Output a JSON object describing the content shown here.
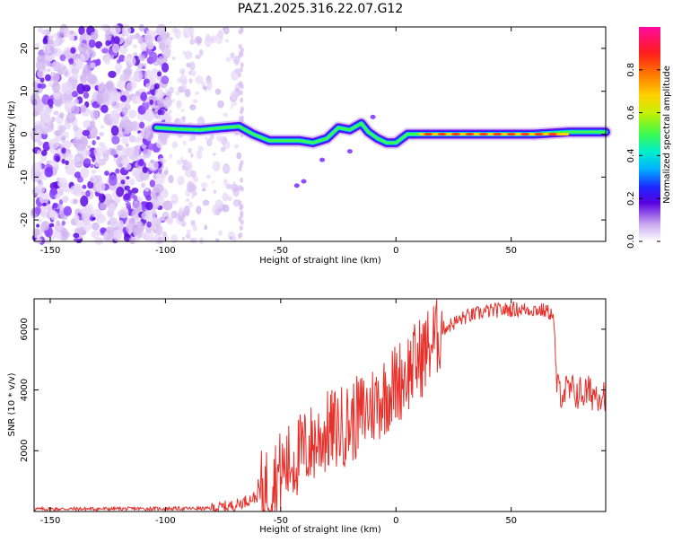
{
  "title": "PAZ1.2025.316.22.07.G12",
  "chart_data": [
    {
      "type": "heatmap",
      "name": "spectrogram",
      "xlabel": "Height of straight line (km)",
      "ylabel": "Frequency (Hz)",
      "xlim": [
        -157,
        91
      ],
      "ylim": [
        -25,
        25
      ],
      "xticks": [
        -150,
        -100,
        -50,
        0,
        50
      ],
      "yticks": [
        -20,
        -10,
        0,
        10,
        20
      ],
      "colorbar": {
        "label": "Normalized spectral amplitude",
        "range": [
          0,
          1
        ],
        "ticks": [
          "0.0",
          "0.2",
          "0.4",
          "0.6",
          "0.8"
        ],
        "tick_values": [
          0.0,
          0.2,
          0.4,
          0.6,
          0.8
        ]
      },
      "ridge": {
        "description_points_height_km": [
          -104,
          -95,
          -85,
          -75,
          -68,
          -62,
          -55,
          -48,
          -42,
          -36,
          -30,
          -25,
          -20,
          -15,
          -12,
          -8,
          -4,
          0,
          5,
          10,
          20,
          40,
          60,
          75,
          91
        ],
        "frequency_hz": [
          1.5,
          1.2,
          1.0,
          1.5,
          1.8,
          0.0,
          -1.5,
          -1.5,
          -1.5,
          -2.0,
          -1.0,
          1.5,
          1.0,
          2.5,
          0.5,
          -1.0,
          -2.0,
          -2.0,
          0.0,
          0.0,
          0.0,
          0.0,
          0.0,
          0.5,
          0.5
        ]
      }
    },
    {
      "type": "line",
      "name": "snr",
      "xlabel": "Height of straight line (km)",
      "ylabel": "SNR (10 * v/v)",
      "xlim": [
        -157,
        91
      ],
      "ylim": [
        0,
        7000
      ],
      "xticks": [
        -150,
        -100,
        -50,
        0,
        50
      ],
      "yticks": [
        2000,
        4000,
        6000
      ],
      "color": "#e8302a",
      "trend_points": {
        "x": [
          -157,
          -80,
          -70,
          -60,
          -50,
          -40,
          -30,
          -20,
          -10,
          0,
          10,
          20,
          30,
          40,
          50,
          60,
          65,
          68,
          70,
          80,
          91
        ],
        "y": [
          80,
          100,
          200,
          500,
          1300,
          2000,
          2600,
          2900,
          3500,
          4200,
          5000,
          6000,
          6400,
          6600,
          6650,
          6650,
          6600,
          6500,
          4000,
          3900,
          3900
        ]
      }
    }
  ]
}
